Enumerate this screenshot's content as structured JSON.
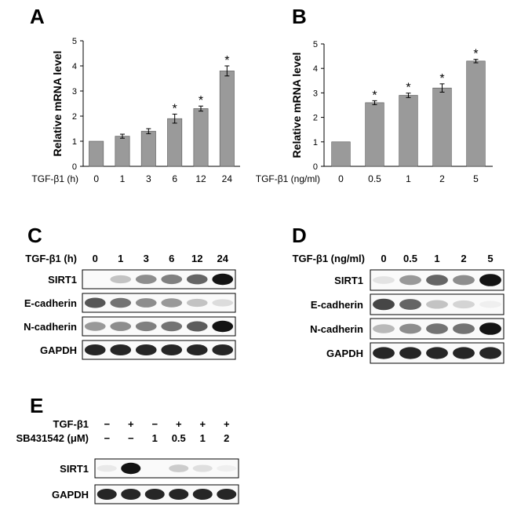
{
  "panels": {
    "a": "A",
    "b": "B",
    "c": "C",
    "d": "D",
    "e": "E"
  },
  "chart_data": [
    {
      "type": "bar",
      "categories": [
        "0",
        "1",
        "3",
        "6",
        "12",
        "24"
      ],
      "values": [
        1.0,
        1.2,
        1.4,
        1.9,
        2.3,
        3.8
      ],
      "errors": [
        0,
        0.08,
        0.1,
        0.18,
        0.1,
        0.2
      ],
      "significant": [
        false,
        false,
        false,
        true,
        true,
        true
      ],
      "sig_marker": "*",
      "xlabel": "TGF-β1 (h)",
      "ylabel": "Relative mRNA level",
      "ylim": [
        0,
        5
      ],
      "yticks": [
        0,
        1,
        2,
        3,
        4,
        5
      ],
      "bar_color": "#9a9a9a",
      "grid": false
    },
    {
      "type": "bar",
      "categories": [
        "0",
        "0.5",
        "1",
        "2",
        "5"
      ],
      "values": [
        1.0,
        2.6,
        2.9,
        3.2,
        4.3
      ],
      "errors": [
        0,
        0.08,
        0.09,
        0.17,
        0.07
      ],
      "significant": [
        false,
        true,
        true,
        true,
        true
      ],
      "sig_marker": "*",
      "xlabel": "TGF-β1 (ng/ml)",
      "ylabel": "Relative mRNA level",
      "ylim": [
        0,
        5
      ],
      "yticks": [
        0,
        1,
        2,
        3,
        4,
        5
      ],
      "bar_color": "#9a9a9a",
      "grid": false
    }
  ],
  "blots": {
    "c": {
      "condition_label": "TGF-β1 (h)",
      "lanes": [
        "0",
        "1",
        "3",
        "6",
        "12",
        "24"
      ],
      "rows": [
        {
          "label": "SIRT1",
          "intensity": [
            0.0,
            0.35,
            0.6,
            0.65,
            0.75,
            1.0
          ]
        },
        {
          "label": "E-cadherin",
          "intensity": [
            0.8,
            0.7,
            0.6,
            0.55,
            0.35,
            0.2
          ]
        },
        {
          "label": "N-cadherin",
          "intensity": [
            0.55,
            0.6,
            0.65,
            0.7,
            0.78,
            1.0
          ]
        },
        {
          "label": "GAPDH",
          "intensity": [
            0.95,
            0.95,
            0.95,
            0.95,
            0.95,
            0.95
          ]
        }
      ]
    },
    "d": {
      "condition_label": "TGF-β1 (ng/ml)",
      "lanes": [
        "0",
        "0.5",
        "1",
        "2",
        "5"
      ],
      "rows": [
        {
          "label": "SIRT1",
          "intensity": [
            0.15,
            0.55,
            0.75,
            0.6,
            1.0
          ]
        },
        {
          "label": "E-cadherin",
          "intensity": [
            0.85,
            0.75,
            0.35,
            0.25,
            0.05
          ]
        },
        {
          "label": "N-cadherin",
          "intensity": [
            0.4,
            0.6,
            0.7,
            0.7,
            1.0
          ]
        },
        {
          "label": "GAPDH",
          "intensity": [
            0.95,
            0.95,
            0.95,
            0.95,
            0.95
          ]
        }
      ]
    },
    "e": {
      "conditions": [
        {
          "label": "TGF-β1",
          "values": [
            "−",
            "+",
            "−",
            "+",
            "+",
            "+"
          ]
        },
        {
          "label": "SB431542 (μM)",
          "values": [
            "−",
            "−",
            "1",
            "0.5",
            "1",
            "2"
          ]
        }
      ],
      "rows": [
        {
          "label": "SIRT1",
          "intensity": [
            0.1,
            1.0,
            0.0,
            0.3,
            0.18,
            0.05
          ]
        },
        {
          "label": "GAPDH",
          "intensity": [
            0.95,
            0.95,
            0.95,
            0.95,
            0.95,
            0.95
          ]
        }
      ]
    }
  }
}
